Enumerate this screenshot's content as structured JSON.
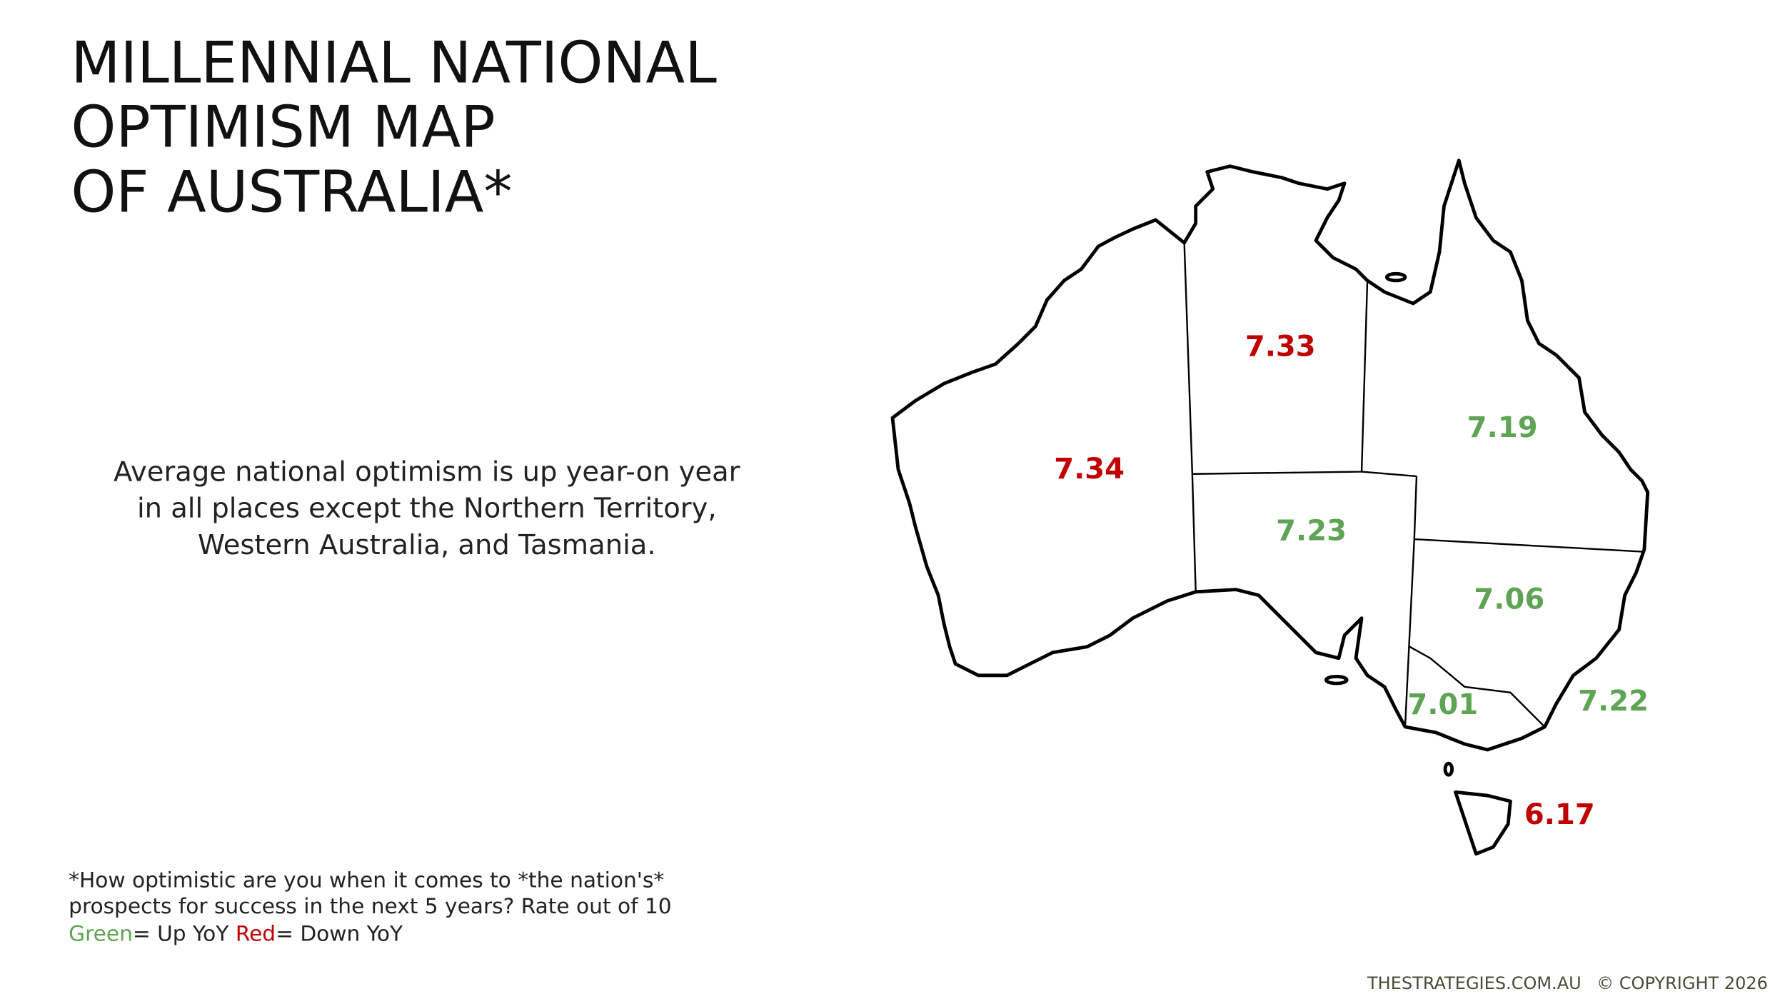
{
  "title": [
    "MILLENNIAL NATIONAL",
    "OPTIMISM MAP",
    "OF AUSTRALIA*"
  ],
  "description": [
    "Average national optimism is up year-on year",
    "in all places except the Northern Territory,",
    "Western Australia, and Tasmania."
  ],
  "regions": [
    {
      "value": 7.34,
      "color": "#c00000"
    },
    {
      "value": 7.33,
      "color": "#c00000"
    },
    {
      "value": 7.19,
      "color": "#5fa454"
    },
    {
      "value": 7.23,
      "color": "#5fa454"
    },
    {
      "value": 7.06,
      "color": "#5fa454"
    },
    {
      "value": 7.01,
      "color": "#5fa454"
    },
    {
      "value": 7.22,
      "color": "#5fa454"
    },
    {
      "value": 6.17,
      "color": "#c00000"
    }
  ],
  "footnote": {
    "lines": [
      "*How optimistic are you when it comes to *the nation's*",
      "prospects for success in the next 5 years? Rate out of 10"
    ],
    "legend": [
      {
        "text": "Green",
        "color": "#5fa454"
      },
      {
        "text": "= Up YoY ",
        "color": "#222222"
      },
      {
        "text": "Red",
        "color": "#c00000"
      },
      {
        "text": "= Down YoY",
        "color": "#222222"
      }
    ]
  },
  "footer": {
    "site": "THESTRATEGIES.COM.AU",
    "copyright": "© COPYRIGHT 2026"
  }
}
